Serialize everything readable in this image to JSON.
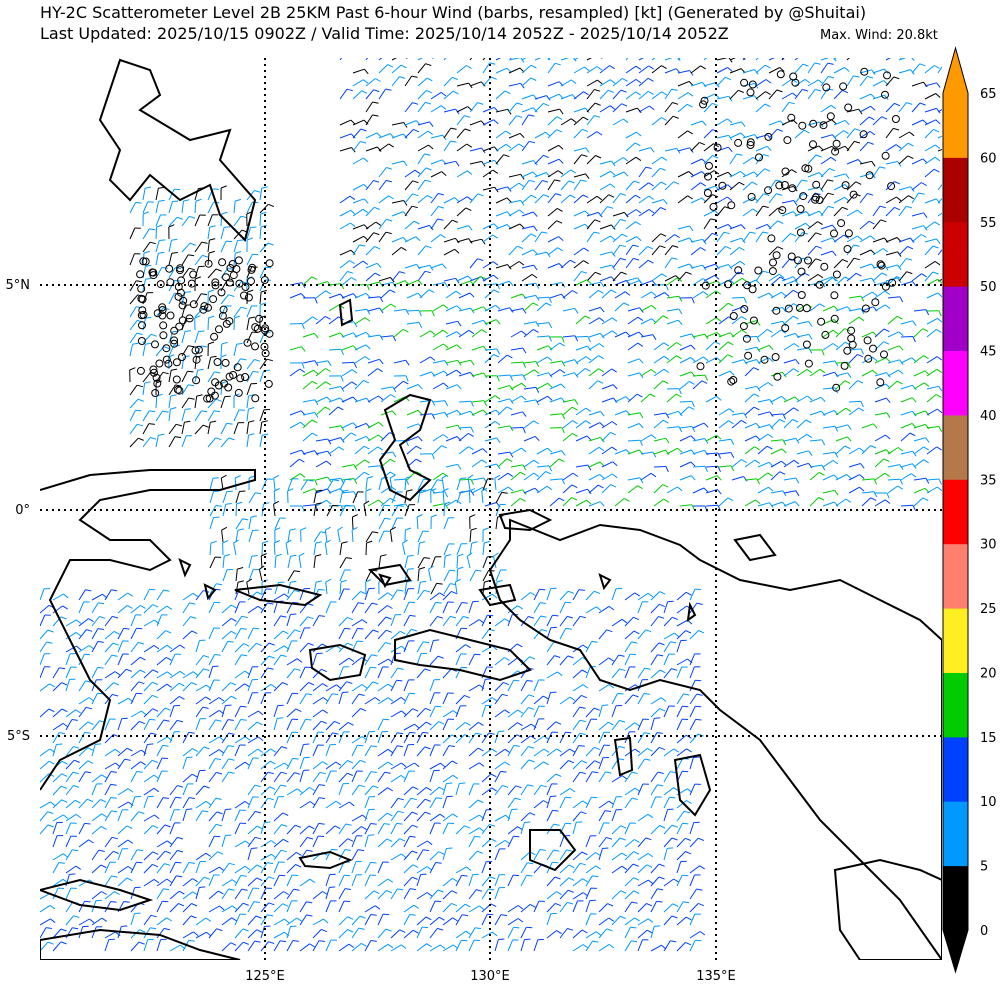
{
  "header": {
    "title": "HY-2C Scatterometer Level 2B 25KM Past 6-hour Wind (barbs, resampled) [kt] (Generated by @Shuitai)",
    "subtitle": "Last Updated: 2025/10/15 0902Z / Valid Time: 2025/10/14 2052Z - 2025/10/14 2052Z",
    "max_wind": "Max. Wind: 20.8kt"
  },
  "map": {
    "lat_labels": [
      "5°N",
      "0°",
      "5°S"
    ],
    "lon_labels": [
      "125°E",
      "130°E",
      "135°E"
    ],
    "grid": "dotted"
  },
  "colorbar": {
    "labels": [
      "0",
      "5",
      "10",
      "15",
      "20",
      "25",
      "30",
      "35",
      "40",
      "45",
      "50",
      "55",
      "60",
      "65"
    ],
    "bins": [
      {
        "range": "0-5",
        "color": "#000000"
      },
      {
        "range": "5-10",
        "color": "#0099ff"
      },
      {
        "range": "10-15",
        "color": "#0040ff"
      },
      {
        "range": "15-20",
        "color": "#00cc00"
      },
      {
        "range": "20-25",
        "color": "#ffee22"
      },
      {
        "range": "25-30",
        "color": "#ff7f6e"
      },
      {
        "range": "30-35",
        "color": "#ff0000"
      },
      {
        "range": "35-40",
        "color": "#b5784a"
      },
      {
        "range": "40-45",
        "color": "#ff00ff"
      },
      {
        "range": "45-50",
        "color": "#a000c8"
      },
      {
        "range": "50-55",
        "color": "#cc0000"
      },
      {
        "range": "55-60",
        "color": "#aa0000"
      },
      {
        "range": "60-65",
        "color": "#ff9900"
      }
    ],
    "extend_low": "#000000",
    "extend_high": "#ff9900"
  }
}
